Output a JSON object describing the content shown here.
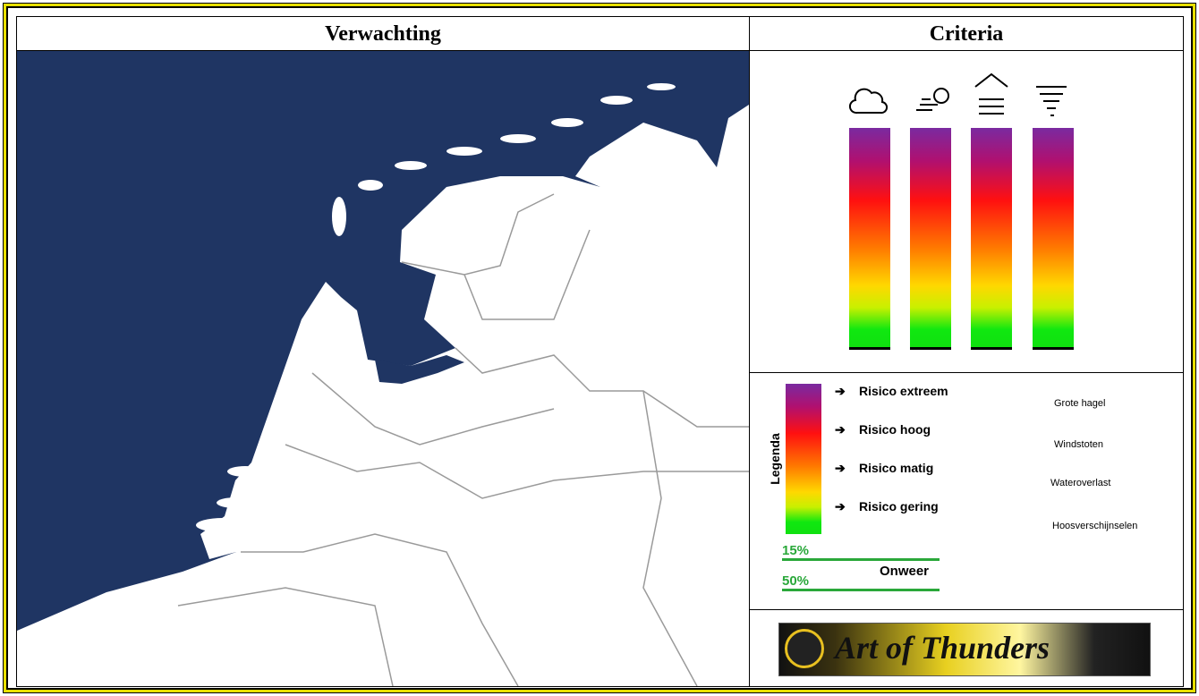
{
  "header": {
    "left": "Verwachting",
    "right": "Criteria"
  },
  "legend": {
    "title": "Legenda",
    "levels": [
      "Risico extreem",
      "Risico hoog",
      "Risico matig",
      "Risico gering"
    ],
    "hazards": [
      "Grote hagel",
      "Windstoten",
      "Wateroverlast",
      "Hoosverschijnselen"
    ],
    "probabilities": [
      "15%",
      "50%"
    ],
    "probability_caption": "Onweer"
  },
  "logo": {
    "text": "Art of Thunders"
  }
}
